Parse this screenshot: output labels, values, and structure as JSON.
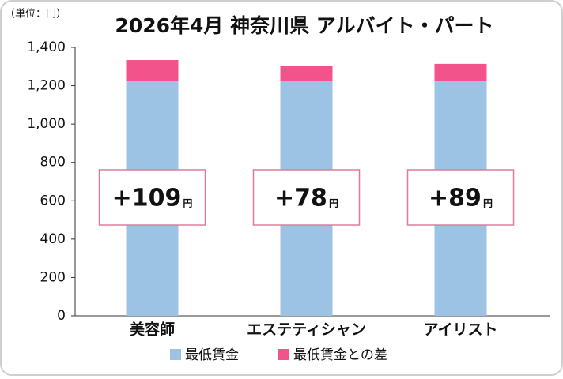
{
  "chart_data": {
    "type": "stacked-bar",
    "title": "2026年4月 神奈川県 アルバイト・パート",
    "unit_label": "（単位：円）",
    "categories": [
      "美容師",
      "エステティシャン",
      "アイリスト"
    ],
    "series": [
      {
        "name": "最低賃金",
        "color": "#9cc2e4",
        "values": [
          1225,
          1225,
          1225
        ]
      },
      {
        "name": "最低賃金との差",
        "color": "#f2538b",
        "values": [
          109,
          78,
          89
        ],
        "value_labels": [
          "+109",
          "+78",
          "+89"
        ]
      }
    ],
    "value_label_unit": "円",
    "ylim": [
      0,
      1400
    ],
    "yticks": [
      0,
      200,
      400,
      600,
      {
        "value": 800,
        "label": "800"
      },
      {
        "value": 1000,
        "label": "1,000"
      },
      {
        "value": 1200,
        "label": "1,200"
      },
      {
        "value": 1400,
        "label": "1,400"
      }
    ],
    "grid": false
  }
}
